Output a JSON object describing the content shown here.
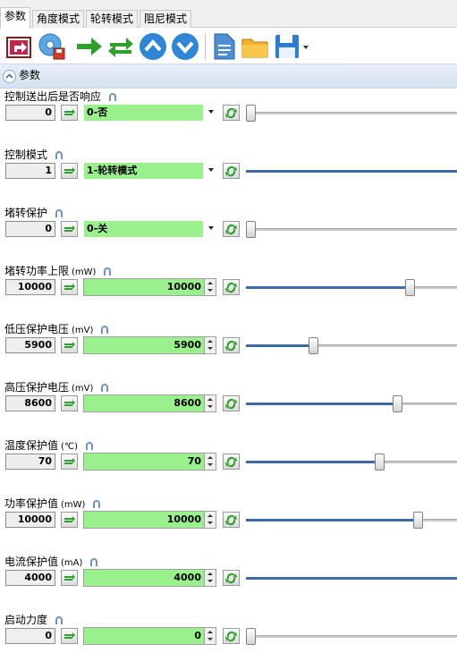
{
  "tabs": [
    {
      "label": "参数",
      "active": true
    },
    {
      "label": "角度模式",
      "active": false
    },
    {
      "label": "轮转模式",
      "active": false
    },
    {
      "label": "阻尼模式",
      "active": false
    }
  ],
  "toolbar": {
    "icons": [
      "export-icon",
      "disc-save-icon",
      "arrow-right-icon",
      "sync-icon",
      "chevron-up-circle-icon",
      "chevron-down-circle-icon",
      "document-icon",
      "folder-icon",
      "floppy-save-icon",
      "dropdown-arrow-icon"
    ]
  },
  "section": {
    "title": "参数"
  },
  "colors": {
    "field_green": "#99f08d",
    "slider_fill": "#3d6aa6",
    "section_bg": "#dbe6f3"
  },
  "params": [
    {
      "label": "控制送出后是否响应",
      "unit": "",
      "current": "0",
      "kind": "select",
      "selected": "0-否",
      "slider_fraction": 0.0
    },
    {
      "label": "控制模式",
      "unit": "",
      "current": "1",
      "kind": "select",
      "selected": "1-轮转模式",
      "slider_fraction": 1.0
    },
    {
      "label": "堵转保护",
      "unit": "",
      "current": "0",
      "kind": "select",
      "selected": "0-关",
      "slider_fraction": 0.0
    },
    {
      "label": "堵转功率上限",
      "unit": "(mW)",
      "current": "10000",
      "kind": "number",
      "value": "10000",
      "slider_fraction": 0.79
    },
    {
      "label": "低压保护电压",
      "unit": "(mV)",
      "current": "5900",
      "kind": "number",
      "value": "5900",
      "slider_fraction": 0.31
    },
    {
      "label": "高压保护电压",
      "unit": "(mV)",
      "current": "8600",
      "kind": "number",
      "value": "8600",
      "slider_fraction": 0.73
    },
    {
      "label": "温度保护值",
      "unit": "(℃)",
      "current": "70",
      "kind": "number",
      "value": "70",
      "slider_fraction": 0.64
    },
    {
      "label": "功率保护值",
      "unit": "(mW)",
      "current": "10000",
      "kind": "number",
      "value": "10000",
      "slider_fraction": 0.83
    },
    {
      "label": "电流保护值",
      "unit": "(mA)",
      "current": "4000",
      "kind": "number",
      "value": "4000",
      "slider_fraction": 1.0
    },
    {
      "label": "启动力度",
      "unit": "",
      "current": "0",
      "kind": "number",
      "value": "0",
      "slider_fraction": 0.0
    }
  ]
}
